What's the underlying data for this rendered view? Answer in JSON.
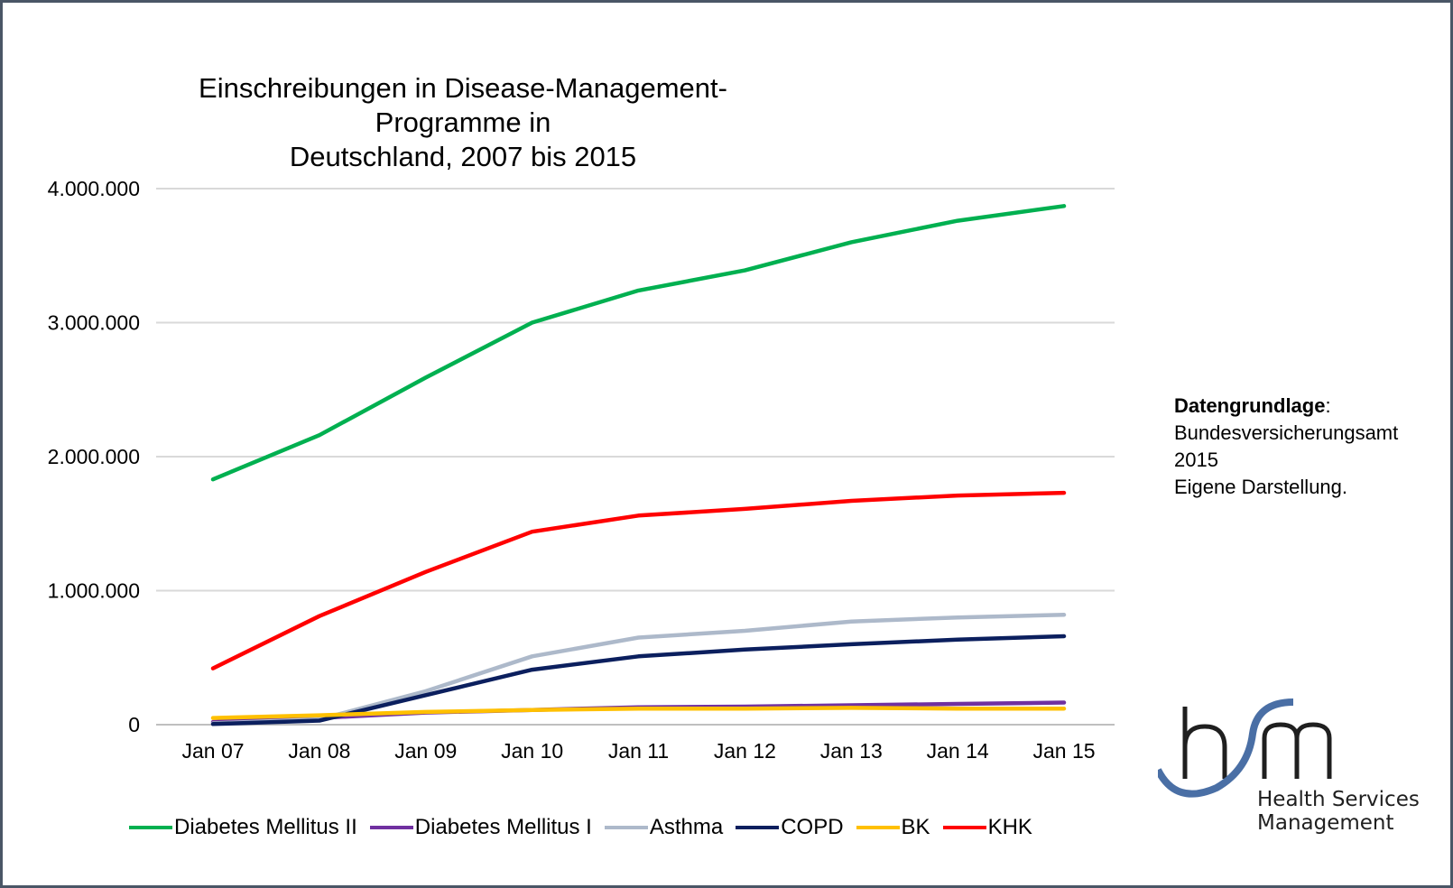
{
  "chart_data": {
    "type": "line",
    "title": "Einschreibungen in Disease-Management-Programme in Deutschland, 2007 bis 2015",
    "title_lines": [
      "Einschreibungen in Disease-Management-Programme in",
      "Deutschland, 2007 bis 2015"
    ],
    "categories": [
      "Jan 07",
      "Jan 08",
      "Jan 09",
      "Jan 10",
      "Jan 11",
      "Jan 12",
      "Jan 13",
      "Jan 14",
      "Jan 15"
    ],
    "y_ticks": [
      0,
      1000000,
      2000000,
      3000000,
      4000000
    ],
    "y_tick_labels": [
      "0",
      "1.000.000",
      "2.000.000",
      "3.000.000",
      "4.000.000"
    ],
    "ylim": [
      0,
      4000000
    ],
    "grid": true,
    "legend_position": "bottom",
    "series": [
      {
        "name": "Diabetes Mellitus II",
        "color": "#00b050",
        "values": [
          1830000,
          2160000,
          2590000,
          3000000,
          3240000,
          3390000,
          3600000,
          3760000,
          3870000
        ]
      },
      {
        "name": "Diabetes Mellitus I",
        "color": "#7030a0",
        "values": [
          20000,
          50000,
          90000,
          110000,
          130000,
          135000,
          145000,
          155000,
          165000
        ]
      },
      {
        "name": "Asthma",
        "color": "#adb9ca",
        "values": [
          10000,
          40000,
          250000,
          510000,
          650000,
          700000,
          770000,
          800000,
          820000
        ]
      },
      {
        "name": "COPD",
        "color": "#0b1f5e",
        "values": [
          5000,
          30000,
          220000,
          410000,
          510000,
          560000,
          600000,
          635000,
          660000
        ]
      },
      {
        "name": "BK",
        "color": "#ffc000",
        "values": [
          50000,
          70000,
          95000,
          110000,
          120000,
          120000,
          125000,
          120000,
          120000
        ]
      },
      {
        "name": "KHK",
        "color": "#ff0000",
        "values": [
          420000,
          810000,
          1140000,
          1440000,
          1560000,
          1610000,
          1670000,
          1710000,
          1730000
        ]
      }
    ]
  },
  "source": {
    "label": "Datengrundlage",
    "colon": ":",
    "lines": [
      "Bundesversicherungsamt",
      "2015",
      "Eigene Darstellung."
    ]
  },
  "logo": {
    "lines": [
      "Health Services",
      "Management"
    ],
    "color": "#4a6fa5"
  }
}
